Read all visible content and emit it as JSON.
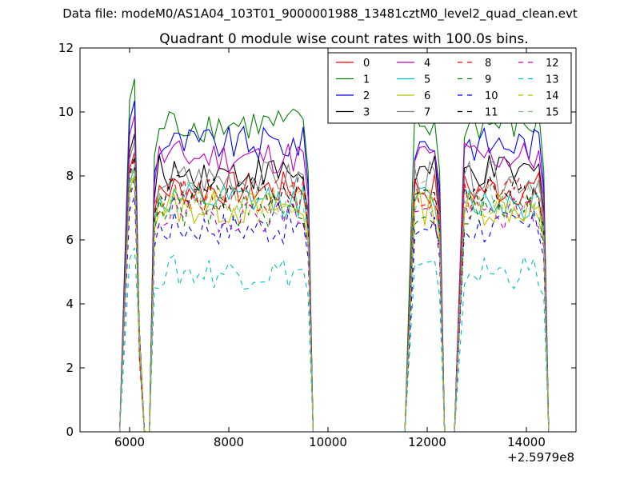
{
  "figure": {
    "suptitle": "Data file: modeM0/AS1A04_103T01_9000001988_13481cztM0_level2_quad_clean.evt"
  },
  "chart_data": {
    "type": "line",
    "title": "Quadrant 0 module wise count rates with 100.0s bins.",
    "xlabel": "",
    "ylabel": "",
    "xlim": [
      5000,
      15000
    ],
    "ylim": [
      0,
      12
    ],
    "x_ticks": [
      "6000",
      "8000",
      "10000",
      "12000",
      "14000"
    ],
    "y_ticks": [
      "0",
      "2",
      "4",
      "6",
      "8",
      "10",
      "12"
    ],
    "offset_text": "+2.5979e8",
    "grid": false,
    "legend": {
      "placement": "top-right",
      "columns": 4,
      "entries": [
        "0",
        "1",
        "2",
        "3",
        "4",
        "5",
        "6",
        "7",
        "8",
        "9",
        "10",
        "11",
        "12",
        "13",
        "14",
        "15"
      ]
    },
    "segments": [
      {
        "x_start": 6000,
        "x_end": 9600,
        "step": 100
      },
      {
        "x_start": 11750,
        "x_end": 12250,
        "step": 100
      },
      {
        "x_start": 12750,
        "x_end": 14350,
        "step": 100
      }
    ],
    "series": [
      {
        "name": "0",
        "color": "#ff0000",
        "dash": "solid",
        "level": 7.6
      },
      {
        "name": "1",
        "color": "#008000",
        "dash": "solid",
        "level": 9.6
      },
      {
        "name": "2",
        "color": "#0000ff",
        "dash": "solid",
        "level": 9.0
      },
      {
        "name": "3",
        "color": "#000000",
        "dash": "solid",
        "level": 8.1
      },
      {
        "name": "4",
        "color": "#bf00bf",
        "dash": "solid",
        "level": 8.6
      },
      {
        "name": "5",
        "color": "#00bfbf",
        "dash": "solid",
        "level": 7.2
      },
      {
        "name": "6",
        "color": "#bfbf00",
        "dash": "solid",
        "level": 7.0
      },
      {
        "name": "7",
        "color": "#808080",
        "dash": "solid",
        "level": 7.9
      },
      {
        "name": "8",
        "color": "#ff0000",
        "dash": "dashed",
        "level": 7.4
      },
      {
        "name": "9",
        "color": "#008000",
        "dash": "dashed",
        "level": 6.9
      },
      {
        "name": "10",
        "color": "#0000ff",
        "dash": "dashed",
        "level": 6.4
      },
      {
        "name": "11",
        "color": "#000000",
        "dash": "dashed",
        "level": 7.5
      },
      {
        "name": "12",
        "color": "#bf00bf",
        "dash": "dashed",
        "level": 6.8
      },
      {
        "name": "13",
        "color": "#00bfbf",
        "dash": "dashed",
        "level": 5.0
      },
      {
        "name": "14",
        "color": "#bfbf00",
        "dash": "dashed",
        "level": 7.1
      },
      {
        "name": "15",
        "color": "#80c080",
        "dash": "dashed",
        "level": 7.3
      }
    ]
  }
}
